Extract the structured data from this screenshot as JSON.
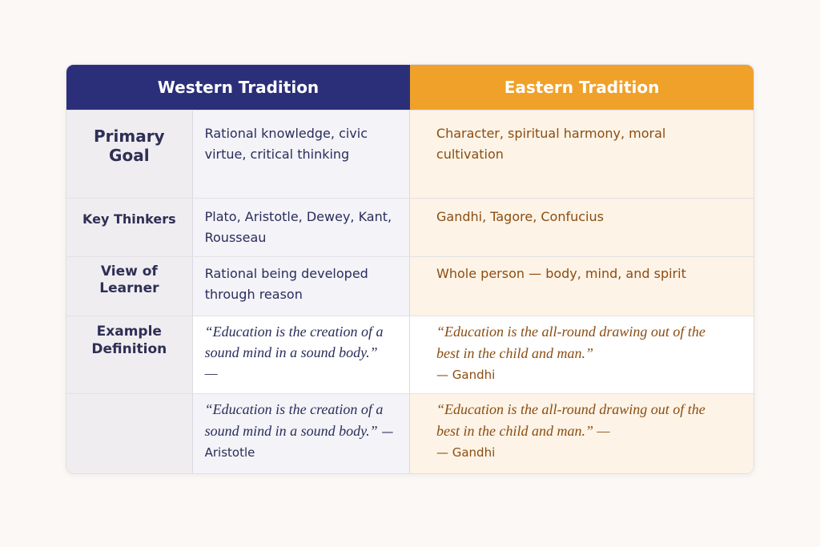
{
  "header": {
    "western": "Western Tradition",
    "eastern": "Eastern Tradition"
  },
  "colors": {
    "western": "#2b2f7a",
    "eastern": "#f0a12a"
  },
  "rows": [
    {
      "label": "Primary Goal",
      "western": "Rational knowledge, civic virtue, critical thinking",
      "eastern": "Character, spiritual harmony, moral cultivation"
    },
    {
      "label": "Key Thinkers",
      "western": "Plato, Aristotle, Dewey, Kant, Rousseau",
      "eastern": "Gandhi, Tagore, Confucius"
    },
    {
      "label": "View of Learner",
      "western": "Rational being developed through reason",
      "eastern": "Whole person — body, mind, and spirit"
    },
    {
      "label": "Example Definition",
      "western_quote": "“Education is the creation of a sound mind in a sound body.” —",
      "eastern_quote": "“Education is the all-round drawing out of the best in the child and man.”",
      "eastern_attr": "— Gandhi"
    },
    {
      "label": "",
      "western_quote": "“Education is the creation of a sound mind in a sound body.”",
      "western_attr": " — Aristotle",
      "eastern_quote": "“Education is the all-round drawing out of the best in the child and man.” —",
      "eastern_attr": "— Gandhi"
    }
  ]
}
